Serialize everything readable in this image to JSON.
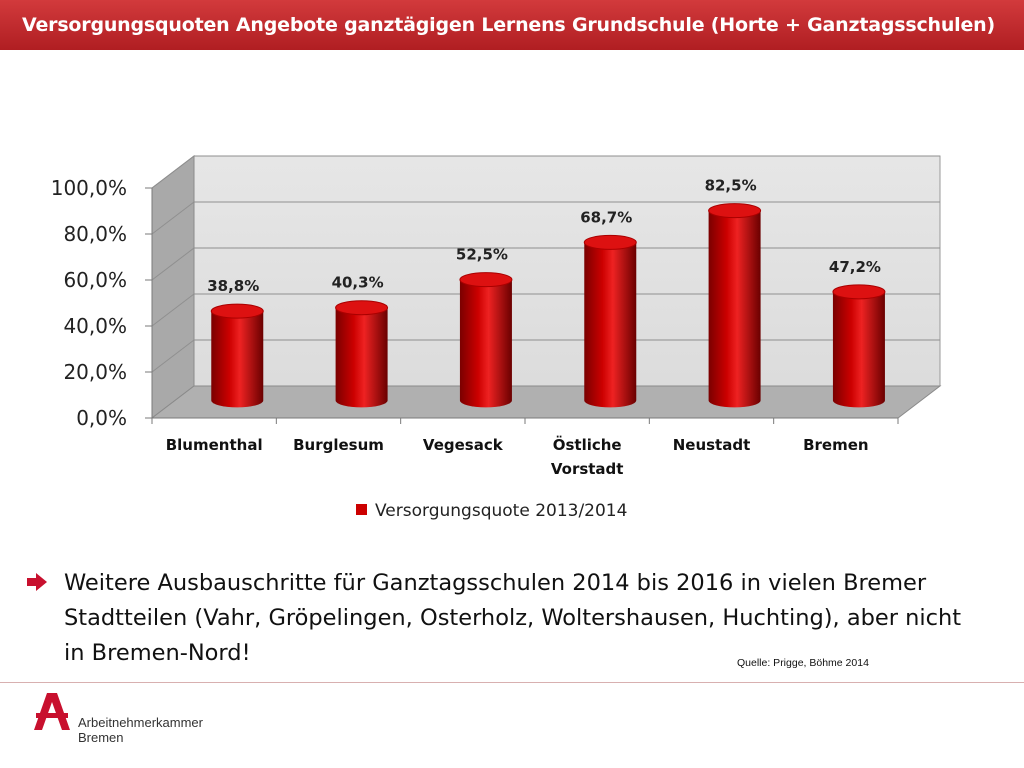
{
  "header": {
    "title": "Versorgungsquoten Angebote ganztägigen Lernens Grundschule (Horte + Ganztagsschulen)"
  },
  "chart_data": {
    "type": "bar",
    "categories": [
      [
        "Blumenthal"
      ],
      [
        "Burglesum"
      ],
      [
        "Vegesack"
      ],
      [
        "Östliche",
        "Vorstadt"
      ],
      [
        "Neustadt"
      ],
      [
        "Bremen"
      ]
    ],
    "series": [
      {
        "name": "Versorgungsquote 2013/2014",
        "values": [
          38.8,
          40.3,
          52.5,
          68.7,
          82.5,
          47.2
        ]
      }
    ],
    "data_labels": [
      "38,8%",
      "40,3%",
      "52,5%",
      "68,7%",
      "82,5%",
      "47,2%"
    ],
    "y_ticks": [
      0,
      20,
      40,
      60,
      80,
      100
    ],
    "y_tick_labels": [
      "0,0%",
      "20,0%",
      "40,0%",
      "60,0%",
      "80,0%",
      "100,0%"
    ],
    "ylim": [
      0,
      100
    ],
    "grid": true,
    "legend_position": "bottom",
    "bar_color": "#cc0000",
    "wall_color": "#dcdcdc",
    "floor_color": "#b0b0b0"
  },
  "body": {
    "bullet": "Weitere Ausbauschritte für Ganztagsschulen 2014 bis 2016 in vielen Bremer Stadtteilen (Vahr, Gröpelingen, Osterholz, Woltershausen, Huchting), aber nicht in Bremen-Nord!",
    "source": "Quelle: Prigge, Böhme 2014"
  },
  "footer": {
    "logo_line1": "Arbeitnehmerkammer",
    "logo_line2": "Bremen",
    "accent_color": "#c8102e"
  }
}
